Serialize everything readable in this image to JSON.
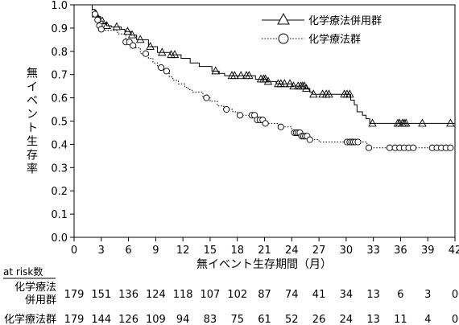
{
  "chart_data": {
    "type": "line",
    "title": "",
    "xlabel": "無イベント生存期間（月）",
    "ylabel": "無イベント生存率",
    "xlim": [
      0,
      42
    ],
    "ylim": [
      0,
      1.0
    ],
    "x_ticks": [
      0,
      3,
      6,
      9,
      12,
      15,
      18,
      21,
      24,
      27,
      30,
      33,
      36,
      39,
      42
    ],
    "x_tick_labels": [
      "0",
      "3",
      "6",
      "9",
      "12",
      "15",
      "18",
      "21",
      "24",
      "27",
      "30",
      "33",
      "36",
      "39",
      "42"
    ],
    "y_ticks": [
      0,
      0.1,
      0.2,
      0.3,
      0.4,
      0.5,
      0.6,
      0.7,
      0.8,
      0.9,
      1.0
    ],
    "y_tick_labels": [
      "0.0",
      "0.1",
      "0.2",
      "0.3",
      "0.4",
      "0.5",
      "0.6",
      "0.7",
      "0.8",
      "0.9",
      "1.0"
    ],
    "grid": false,
    "legend_position": "top-right",
    "series": [
      {
        "name": "化学療法併用群",
        "line_style": "solid",
        "marker": "triangle",
        "color": "#000000",
        "steps": [
          [
            0,
            1.0
          ],
          [
            2.0,
            0.98
          ],
          [
            2.3,
            0.96
          ],
          [
            2.6,
            0.95
          ],
          [
            2.9,
            0.93
          ],
          [
            3.2,
            0.92
          ],
          [
            3.6,
            0.91
          ],
          [
            4.1,
            0.905
          ],
          [
            5.2,
            0.895
          ],
          [
            5.6,
            0.885
          ],
          [
            6.3,
            0.87
          ],
          [
            6.9,
            0.85
          ],
          [
            8.2,
            0.82
          ],
          [
            9.2,
            0.795
          ],
          [
            10.6,
            0.785
          ],
          [
            11.8,
            0.77
          ],
          [
            12.8,
            0.75
          ],
          [
            13.8,
            0.735
          ],
          [
            15.2,
            0.715
          ],
          [
            16.0,
            0.705
          ],
          [
            16.6,
            0.695
          ],
          [
            20.0,
            0.68
          ],
          [
            21.3,
            0.67
          ],
          [
            22.3,
            0.66
          ],
          [
            24.0,
            0.65
          ],
          [
            25.5,
            0.64
          ],
          [
            26.0,
            0.625
          ],
          [
            26.3,
            0.615
          ],
          [
            30.5,
            0.59
          ],
          [
            30.9,
            0.57
          ],
          [
            31.2,
            0.54
          ],
          [
            31.8,
            0.525
          ],
          [
            32.2,
            0.51
          ],
          [
            32.6,
            0.49
          ],
          [
            42,
            0.49
          ]
        ],
        "censor_x": [
          2.4,
          3.1,
          3.6,
          4.7,
          5.9,
          6.4,
          7.3,
          8.4,
          9.7,
          10.7,
          11.1,
          15.6,
          17.4,
          17.7,
          18.4,
          19.0,
          19.3,
          20.6,
          20.9,
          21.1,
          21.4,
          22.5,
          22.8,
          23.2,
          23.8,
          24.2,
          24.7,
          25.0,
          25.2,
          25.4,
          25.6,
          26.4,
          27.4,
          27.8,
          28.1,
          29.8,
          30.1,
          30.4,
          32.9,
          35.7,
          35.9,
          36.2,
          36.4,
          36.6,
          38.4,
          41.5
        ]
      },
      {
        "name": "化学療法群",
        "line_style": "dotted",
        "marker": "circle",
        "color": "#000000",
        "steps": [
          [
            0,
            1.0
          ],
          [
            2.0,
            0.96
          ],
          [
            2.4,
            0.935
          ],
          [
            2.7,
            0.91
          ],
          [
            3.0,
            0.895
          ],
          [
            3.3,
            0.89
          ],
          [
            4.8,
            0.875
          ],
          [
            5.7,
            0.84
          ],
          [
            6.3,
            0.825
          ],
          [
            6.8,
            0.815
          ],
          [
            7.3,
            0.79
          ],
          [
            8.2,
            0.77
          ],
          [
            8.7,
            0.75
          ],
          [
            9.2,
            0.73
          ],
          [
            9.9,
            0.715
          ],
          [
            10.5,
            0.69
          ],
          [
            10.9,
            0.675
          ],
          [
            11.5,
            0.66
          ],
          [
            12.2,
            0.645
          ],
          [
            12.6,
            0.635
          ],
          [
            13.0,
            0.625
          ],
          [
            14.2,
            0.6
          ],
          [
            15.0,
            0.585
          ],
          [
            15.8,
            0.565
          ],
          [
            16.5,
            0.55
          ],
          [
            17.5,
            0.54
          ],
          [
            18.0,
            0.525
          ],
          [
            20.0,
            0.505
          ],
          [
            21.0,
            0.49
          ],
          [
            22.5,
            0.475
          ],
          [
            24.0,
            0.45
          ],
          [
            25.0,
            0.435
          ],
          [
            26.0,
            0.42
          ],
          [
            27.0,
            0.41
          ],
          [
            32.3,
            0.385
          ],
          [
            42,
            0.385
          ]
        ],
        "censor_x": [
          2.3,
          2.6,
          2.8,
          3.0,
          5.7,
          6.1,
          6.5,
          7.9,
          9.6,
          10.2,
          14.6,
          16.8,
          18.3,
          19.6,
          19.9,
          20.2,
          20.5,
          20.8,
          21.1,
          22.8,
          24.3,
          24.5,
          24.7,
          24.9,
          25.1,
          25.3,
          25.5,
          25.7,
          26.0,
          30.1,
          30.4,
          30.6,
          30.8,
          31.0,
          31.3,
          32.5,
          34.8,
          35.4,
          35.9,
          36.4,
          36.9,
          37.4,
          39.5,
          40.0,
          40.5,
          41.0,
          41.5
        ]
      }
    ]
  },
  "risk_table": {
    "header": "at risk数",
    "rows": [
      {
        "label_line1": "化学療法",
        "label_line2": "併用群",
        "values": [
          "179",
          "151",
          "136",
          "124",
          "118",
          "107",
          "102",
          "87",
          "74",
          "41",
          "34",
          "13",
          "6",
          "3",
          "0"
        ]
      },
      {
        "label_line1": "化学療法群",
        "label_line2": "",
        "values": [
          "179",
          "144",
          "126",
          "109",
          "94",
          "83",
          "75",
          "61",
          "52",
          "26",
          "24",
          "13",
          "11",
          "4",
          "0"
        ]
      }
    ]
  }
}
